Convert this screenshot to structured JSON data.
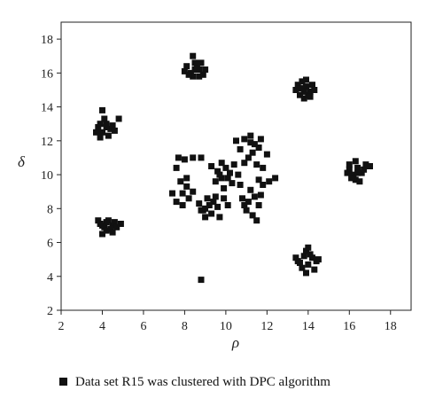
{
  "chart_data": {
    "type": "scatter",
    "xlabel": "ρ",
    "ylabel": "δ",
    "xlim": [
      2,
      19
    ],
    "ylim": [
      2,
      19
    ],
    "x_ticks": [
      "2",
      "4",
      "6",
      "8",
      "10",
      "12",
      "14",
      "16",
      "18"
    ],
    "y_ticks": [
      "2",
      "4",
      "6",
      "8",
      "10",
      "12",
      "14",
      "16",
      "18"
    ],
    "grid": false,
    "legend_position": "bottom",
    "marker": "square",
    "marker_color": "#111111",
    "series": [
      {
        "name": "Data set R15 was clustered with DPC algorithm",
        "points": [
          [
            8.1,
            16.4
          ],
          [
            8.3,
            16.0
          ],
          [
            8.5,
            16.6
          ],
          [
            8.7,
            16.2
          ],
          [
            8.4,
            15.8
          ],
          [
            8.9,
            15.9
          ],
          [
            8.6,
            16.3
          ],
          [
            8.0,
            16.1
          ],
          [
            8.8,
            16.6
          ],
          [
            8.4,
            17.0
          ],
          [
            8.2,
            15.9
          ],
          [
            9.0,
            16.2
          ],
          [
            8.5,
            16.2
          ],
          [
            8.7,
            15.8
          ],
          [
            13.4,
            15.0
          ],
          [
            13.6,
            14.7
          ],
          [
            13.9,
            15.2
          ],
          [
            14.1,
            14.9
          ],
          [
            13.8,
            14.5
          ],
          [
            14.2,
            15.3
          ],
          [
            13.5,
            15.3
          ],
          [
            14.0,
            14.7
          ],
          [
            13.7,
            15.5
          ],
          [
            14.3,
            15.0
          ],
          [
            13.8,
            14.9
          ],
          [
            13.9,
            15.6
          ],
          [
            14.1,
            14.6
          ],
          [
            13.6,
            15.1
          ],
          [
            3.8,
            12.8
          ],
          [
            4.0,
            12.5
          ],
          [
            4.2,
            13.0
          ],
          [
            4.4,
            12.7
          ],
          [
            4.1,
            13.3
          ],
          [
            3.9,
            13.0
          ],
          [
            4.5,
            12.9
          ],
          [
            4.3,
            12.3
          ],
          [
            3.7,
            12.5
          ],
          [
            4.6,
            12.6
          ],
          [
            4.0,
            13.8
          ],
          [
            4.8,
            13.3
          ],
          [
            4.2,
            12.8
          ],
          [
            3.9,
            12.2
          ],
          [
            16.0,
            10.3
          ],
          [
            16.2,
            10.0
          ],
          [
            16.4,
            10.4
          ],
          [
            16.6,
            10.1
          ],
          [
            16.3,
            9.7
          ],
          [
            16.1,
            9.8
          ],
          [
            16.7,
            10.3
          ],
          [
            16.5,
            9.6
          ],
          [
            15.9,
            10.1
          ],
          [
            16.8,
            10.6
          ],
          [
            16.3,
            10.8
          ],
          [
            16.0,
            10.6
          ],
          [
            17.0,
            10.5
          ],
          [
            16.4,
            10.1
          ],
          [
            3.9,
            7.1
          ],
          [
            4.1,
            6.9
          ],
          [
            4.3,
            7.3
          ],
          [
            4.5,
            7.0
          ],
          [
            4.2,
            6.7
          ],
          [
            4.0,
            6.5
          ],
          [
            4.6,
            7.2
          ],
          [
            4.4,
            6.8
          ],
          [
            3.8,
            7.3
          ],
          [
            4.7,
            6.9
          ],
          [
            4.5,
            6.6
          ],
          [
            4.9,
            7.1
          ],
          [
            4.2,
            7.2
          ],
          [
            4.0,
            7.0
          ],
          [
            13.5,
            4.9
          ],
          [
            13.8,
            5.2
          ],
          [
            14.0,
            4.7
          ],
          [
            14.2,
            5.1
          ],
          [
            13.9,
            5.5
          ],
          [
            13.7,
            4.5
          ],
          [
            14.4,
            4.9
          ],
          [
            14.1,
            5.3
          ],
          [
            13.4,
            5.1
          ],
          [
            14.5,
            5.0
          ],
          [
            13.9,
            4.2
          ],
          [
            14.3,
            4.4
          ],
          [
            14.0,
            5.7
          ],
          [
            13.6,
            4.8
          ],
          [
            7.7,
            11.0
          ],
          [
            8.0,
            10.9
          ],
          [
            8.4,
            11.0
          ],
          [
            8.8,
            11.0
          ],
          [
            7.6,
            10.4
          ],
          [
            7.8,
            9.6
          ],
          [
            8.1,
            9.3
          ],
          [
            7.9,
            8.9
          ],
          [
            7.4,
            8.9
          ],
          [
            7.6,
            8.4
          ],
          [
            8.2,
            8.6
          ],
          [
            8.4,
            9.0
          ],
          [
            7.9,
            8.2
          ],
          [
            8.1,
            9.8
          ],
          [
            8.7,
            8.3
          ],
          [
            8.9,
            7.9
          ],
          [
            9.1,
            8.6
          ],
          [
            9.3,
            7.7
          ],
          [
            9.0,
            7.5
          ],
          [
            9.6,
            8.1
          ],
          [
            9.4,
            8.4
          ],
          [
            8.8,
            7.9
          ],
          [
            9.2,
            8.2
          ],
          [
            9.7,
            7.5
          ],
          [
            9.9,
            8.6
          ],
          [
            10.1,
            8.2
          ],
          [
            9.5,
            8.7
          ],
          [
            9.0,
            8.0
          ],
          [
            9.3,
            10.5
          ],
          [
            9.6,
            10.2
          ],
          [
            9.8,
            9.8
          ],
          [
            10.0,
            10.4
          ],
          [
            10.2,
            10.1
          ],
          [
            10.4,
            10.6
          ],
          [
            9.5,
            9.6
          ],
          [
            10.3,
            9.5
          ],
          [
            9.8,
            10.7
          ],
          [
            10.6,
            10.0
          ],
          [
            9.9,
            9.2
          ],
          [
            10.7,
            9.4
          ],
          [
            10.1,
            9.8
          ],
          [
            9.7,
            10.0
          ],
          [
            10.5,
            12.0
          ],
          [
            10.9,
            12.1
          ],
          [
            11.2,
            12.3
          ],
          [
            11.4,
            11.8
          ],
          [
            10.7,
            11.5
          ],
          [
            11.1,
            11.0
          ],
          [
            11.3,
            11.3
          ],
          [
            11.6,
            11.6
          ],
          [
            10.9,
            10.7
          ],
          [
            11.5,
            10.6
          ],
          [
            11.8,
            10.4
          ],
          [
            12.0,
            11.2
          ],
          [
            11.7,
            12.1
          ],
          [
            11.2,
            11.9
          ],
          [
            10.8,
            8.6
          ],
          [
            11.1,
            8.4
          ],
          [
            11.4,
            8.7
          ],
          [
            11.0,
            7.9
          ],
          [
            11.3,
            7.6
          ],
          [
            11.6,
            8.2
          ],
          [
            11.5,
            7.3
          ],
          [
            11.7,
            8.8
          ],
          [
            11.8,
            9.4
          ],
          [
            11.2,
            9.1
          ],
          [
            10.9,
            8.2
          ],
          [
            11.6,
            9.7
          ],
          [
            12.1,
            9.6
          ],
          [
            12.4,
            9.8
          ],
          [
            8.8,
            3.8
          ]
        ]
      }
    ]
  }
}
